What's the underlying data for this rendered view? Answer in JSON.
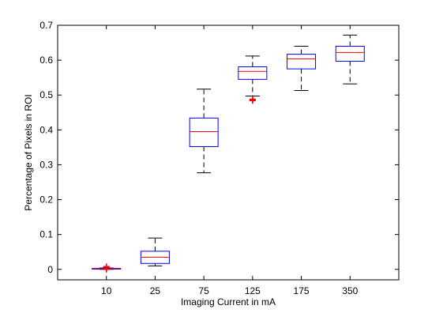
{
  "chart_data": {
    "type": "box",
    "title": "",
    "xlabel": "Imaging Current in mA",
    "ylabel": "Percentage of Pixels in ROI",
    "categories": [
      "10",
      "25",
      "75",
      "125",
      "175",
      "350"
    ],
    "ylim": [
      -0.03,
      0.7
    ],
    "yticks": [
      0,
      0.1,
      0.2,
      0.3,
      0.4,
      0.5,
      0.6,
      0.7
    ],
    "ytick_labels": [
      "0",
      "0.1",
      "0.2",
      "0.3",
      "0.4",
      "0.5",
      "0.6",
      "0.7"
    ],
    "boxes": [
      {
        "category": "10",
        "whisker_low": 0.0,
        "q1": 0.001,
        "median": 0.002,
        "q3": 0.003,
        "whisker_high": 0.004,
        "outliers": [
          0.007,
          0.008,
          0.0
        ]
      },
      {
        "category": "25",
        "whisker_low": 0.01,
        "q1": 0.017,
        "median": 0.035,
        "q3": 0.052,
        "whisker_high": 0.09,
        "outliers": []
      },
      {
        "category": "75",
        "whisker_low": 0.277,
        "q1": 0.352,
        "median": 0.395,
        "q3": 0.434,
        "whisker_high": 0.517,
        "outliers": []
      },
      {
        "category": "125",
        "whisker_low": 0.497,
        "q1": 0.545,
        "median": 0.568,
        "q3": 0.581,
        "whisker_high": 0.612,
        "outliers": [
          0.488,
          0.486,
          0.484
        ]
      },
      {
        "category": "175",
        "whisker_low": 0.513,
        "q1": 0.575,
        "median": 0.604,
        "q3": 0.617,
        "whisker_high": 0.64,
        "outliers": []
      },
      {
        "category": "350",
        "whisker_low": 0.532,
        "q1": 0.597,
        "median": 0.622,
        "q3": 0.64,
        "whisker_high": 0.672,
        "outliers": []
      }
    ],
    "colors": {
      "box": "#0000ff",
      "median": "#ff0000",
      "whisker": "#000000",
      "outlier": "#ff0000"
    },
    "grid": false,
    "legend": "none"
  }
}
